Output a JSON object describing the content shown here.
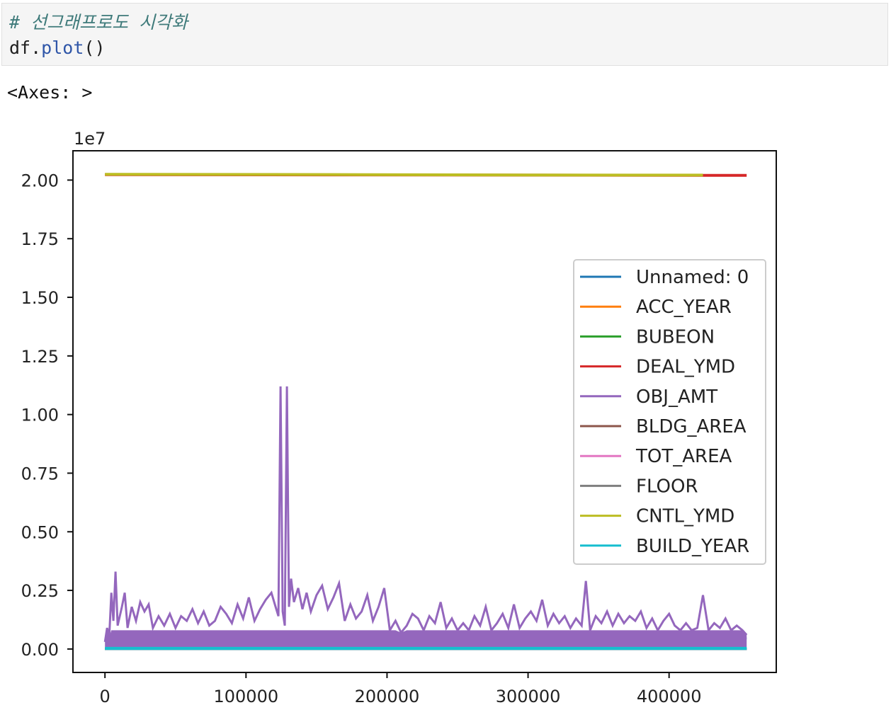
{
  "code_cell": {
    "comment": "# 선그래프로도 시각화",
    "code_obj": "df",
    "code_dot": ".",
    "code_func": "plot",
    "code_parens": "()"
  },
  "output_text": "<Axes: >",
  "chart_data": {
    "type": "line",
    "offset_label": "1e7",
    "xlim": [
      -22700,
      476000
    ],
    "ylim": [
      -0.1,
      2.125
    ],
    "y_scale_factor": 10000000,
    "x_ticks": [
      0,
      100000,
      200000,
      300000,
      400000
    ],
    "x_tick_labels": [
      "0",
      "100000",
      "200000",
      "300000",
      "400000"
    ],
    "y_ticks": [
      0.0,
      0.25,
      0.5,
      0.75,
      1.0,
      1.25,
      1.5,
      1.75,
      2.0
    ],
    "y_tick_labels": [
      "0.00",
      "0.25",
      "0.50",
      "0.75",
      "1.00",
      "1.25",
      "1.50",
      "1.75",
      "2.00"
    ],
    "legend_position": "center-right",
    "grid": false,
    "series": [
      {
        "name": "Unnamed: 0",
        "color": "#1f77b4",
        "x": [
          0,
          455000
        ],
        "values": [
          0.0,
          0.0455
        ]
      },
      {
        "name": "ACC_YEAR",
        "color": "#ff7f0e",
        "x": [
          0,
          455000
        ],
        "values": [
          0.0002,
          0.0002
        ]
      },
      {
        "name": "BUBEON",
        "color": "#2ca02c",
        "x": [
          0,
          455000
        ],
        "values": [
          0.0001,
          0.0001
        ]
      },
      {
        "name": "DEAL_YMD",
        "color": "#d62728",
        "x": [
          0,
          160000,
          300000,
          425000,
          455000
        ],
        "values": [
          2.023,
          2.022,
          2.021,
          2.02,
          2.02
        ]
      },
      {
        "name": "OBJ_AMT",
        "color": "#9467bd",
        "x": [
          0,
          1500,
          3000,
          4500,
          6000,
          7500,
          9000,
          12000,
          14000,
          16000,
          19000,
          22000,
          25000,
          28000,
          31000,
          34000,
          38000,
          42000,
          46000,
          50000,
          54000,
          58000,
          62000,
          66000,
          70000,
          74000,
          78000,
          82000,
          86000,
          90000,
          94000,
          98000,
          102000,
          106000,
          110000,
          114000,
          118000,
          121000,
          123000,
          124500,
          126000,
          127500,
          129000,
          130500,
          132000,
          134000,
          137000,
          140000,
          143000,
          146000,
          150000,
          154000,
          158000,
          162000,
          166000,
          170000,
          174000,
          178000,
          182000,
          186000,
          190000,
          194000,
          198000,
          202000,
          206000,
          210000,
          214000,
          218000,
          222000,
          226000,
          230000,
          234000,
          238000,
          242000,
          246000,
          250000,
          254000,
          258000,
          262000,
          266000,
          270000,
          274000,
          278000,
          282000,
          286000,
          290000,
          294000,
          298000,
          302000,
          306000,
          310000,
          314000,
          318000,
          322000,
          326000,
          330000,
          334000,
          338000,
          341000,
          344000,
          348000,
          352000,
          356000,
          360000,
          364000,
          368000,
          372000,
          376000,
          380000,
          384000,
          388000,
          392000,
          396000,
          400000,
          404000,
          408000,
          412000,
          416000,
          420000,
          424000,
          428000,
          432000,
          436000,
          440000,
          444000,
          448000,
          452000,
          455000
        ],
        "values": [
          0.03,
          0.09,
          0.05,
          0.24,
          0.12,
          0.33,
          0.1,
          0.18,
          0.24,
          0.09,
          0.18,
          0.12,
          0.2,
          0.16,
          0.19,
          0.09,
          0.14,
          0.1,
          0.15,
          0.09,
          0.14,
          0.12,
          0.17,
          0.11,
          0.16,
          0.1,
          0.12,
          0.18,
          0.15,
          0.11,
          0.19,
          0.13,
          0.22,
          0.12,
          0.17,
          0.21,
          0.24,
          0.18,
          0.14,
          1.12,
          0.16,
          0.1,
          1.12,
          0.18,
          0.3,
          0.2,
          0.26,
          0.17,
          0.24,
          0.16,
          0.23,
          0.27,
          0.17,
          0.22,
          0.28,
          0.12,
          0.19,
          0.13,
          0.16,
          0.23,
          0.12,
          0.18,
          0.26,
          0.08,
          0.12,
          0.07,
          0.1,
          0.15,
          0.13,
          0.08,
          0.14,
          0.11,
          0.2,
          0.09,
          0.13,
          0.08,
          0.11,
          0.08,
          0.14,
          0.1,
          0.18,
          0.08,
          0.11,
          0.15,
          0.09,
          0.19,
          0.09,
          0.13,
          0.16,
          0.12,
          0.21,
          0.1,
          0.15,
          0.11,
          0.14,
          0.09,
          0.13,
          0.1,
          0.29,
          0.08,
          0.14,
          0.11,
          0.16,
          0.1,
          0.15,
          0.11,
          0.14,
          0.12,
          0.16,
          0.09,
          0.13,
          0.08,
          0.12,
          0.15,
          0.1,
          0.08,
          0.11,
          0.08,
          0.09,
          0.23,
          0.08,
          0.11,
          0.09,
          0.13,
          0.08,
          0.1,
          0.08,
          0.06
        ]
      },
      {
        "name": "BLDG_AREA",
        "color": "#8c564b",
        "x": [
          0,
          455000
        ],
        "values": [
          0.0,
          0.0
        ]
      },
      {
        "name": "TOT_AREA",
        "color": "#e377c2",
        "x": [
          0,
          455000
        ],
        "values": [
          0.0,
          0.0
        ]
      },
      {
        "name": "FLOOR",
        "color": "#7f7f7f",
        "x": [
          0,
          455000
        ],
        "values": [
          0.0,
          0.0
        ]
      },
      {
        "name": "CNTL_YMD",
        "color": "#bcbd22",
        "x": [
          0,
          160000,
          300000,
          424000
        ],
        "values": [
          2.0245,
          2.0235,
          2.0215,
          2.021
        ]
      },
      {
        "name": "BUILD_YEAR",
        "color": "#17becf",
        "x": [
          0,
          455000
        ],
        "values": [
          0.0002,
          0.0002
        ]
      }
    ]
  }
}
